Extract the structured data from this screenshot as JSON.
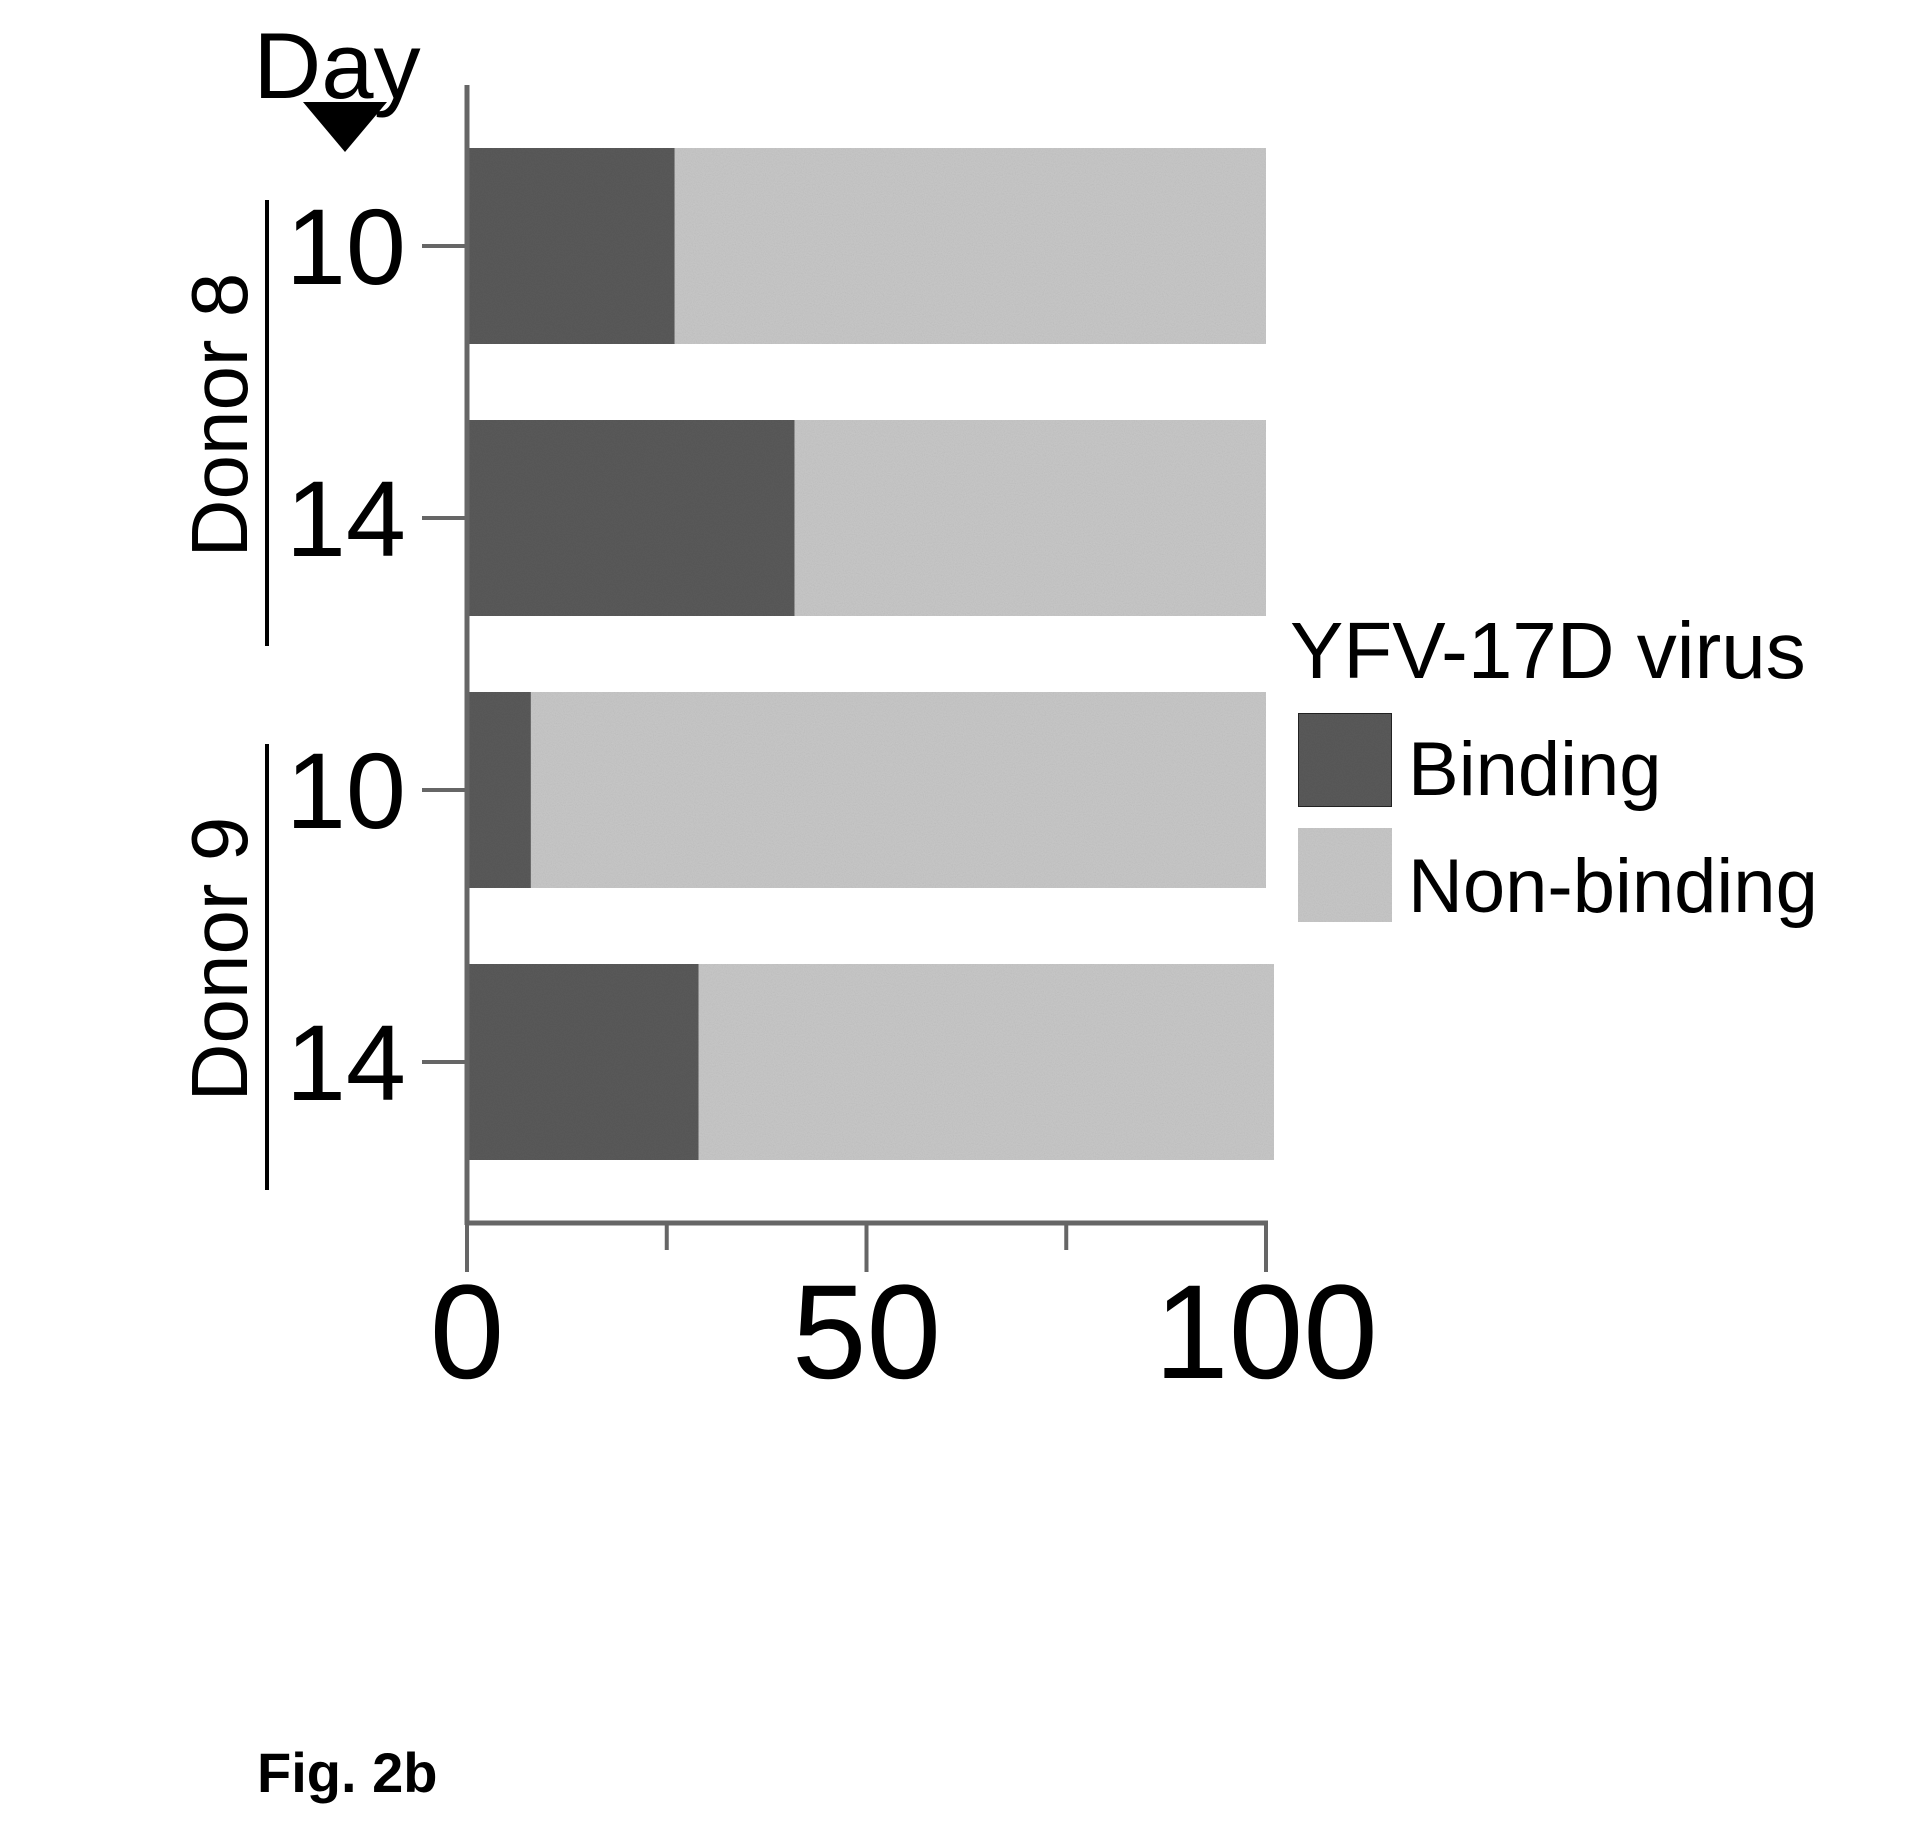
{
  "figure_label": "Fig. 2b",
  "colors": {
    "binding": "#5a5a5a",
    "non_binding": "#c8c8c8",
    "axis": "#666666",
    "text": "#000000"
  },
  "chart_data": {
    "type": "bar",
    "orientation": "horizontal",
    "stacked": true,
    "day_header": "Day",
    "groups": [
      {
        "label": "Donor 8",
        "rows": [
          0,
          1
        ]
      },
      {
        "label": "Donor 9",
        "rows": [
          2,
          3
        ]
      }
    ],
    "categories": [
      "10",
      "14",
      "10",
      "14"
    ],
    "series": [
      {
        "name": "Binding",
        "values": [
          26,
          41,
          8,
          29
        ]
      },
      {
        "name": "Non-binding",
        "values": [
          74,
          59,
          92,
          72
        ]
      }
    ],
    "xlim": [
      0,
      100
    ],
    "xticks": [
      0,
      50,
      100
    ],
    "minor_xticks": [
      25,
      75
    ],
    "xlabel": "",
    "ylabel": "",
    "legend": {
      "title": "YFV-17D virus",
      "position": "right"
    },
    "grid": false
  }
}
